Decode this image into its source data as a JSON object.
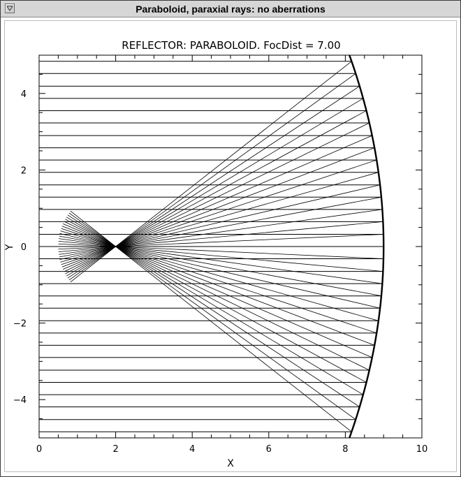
{
  "window": {
    "title": "Paraboloid, paraxial rays: no aberrations",
    "menu_icon": "window-menu-icon"
  },
  "chart_data": {
    "type": "line",
    "title": "REFLECTOR: PARABOLOID.  FocDist = 7.00",
    "xlabel": "X",
    "ylabel": "Y",
    "xlim": [
      0,
      10
    ],
    "ylim": [
      -5,
      5
    ],
    "xticks": [
      0,
      2,
      4,
      6,
      8,
      10
    ],
    "xtick_labels": [
      "0",
      "2",
      "4",
      "6",
      "8",
      "10"
    ],
    "yticks": [
      -4,
      -2,
      0,
      2,
      4
    ],
    "ytick_labels": [
      "−4",
      "−2",
      "0",
      "2",
      "4"
    ],
    "grid": false,
    "mirror": {
      "vertex_x": 9.0,
      "focal_distance": 7.0,
      "y_range": [
        -5,
        5
      ]
    },
    "incoming_rays": {
      "start_x": 0,
      "y_values": [
        -4.84,
        -4.52,
        -4.19,
        -3.87,
        -3.55,
        -3.23,
        -2.9,
        -2.58,
        -2.26,
        -1.94,
        -1.61,
        -1.29,
        -0.97,
        -0.65,
        -0.32,
        0.0,
        0.32,
        0.65,
        0.97,
        1.29,
        1.61,
        1.94,
        2.26,
        2.58,
        2.9,
        3.23,
        3.55,
        3.87,
        4.19,
        4.52,
        4.84
      ]
    },
    "reflected_rays": {
      "focus": [
        2.0,
        0.0
      ],
      "end_distance_past_focus": 1.5
    },
    "series": [
      {
        "values": []
      }
    ]
  }
}
